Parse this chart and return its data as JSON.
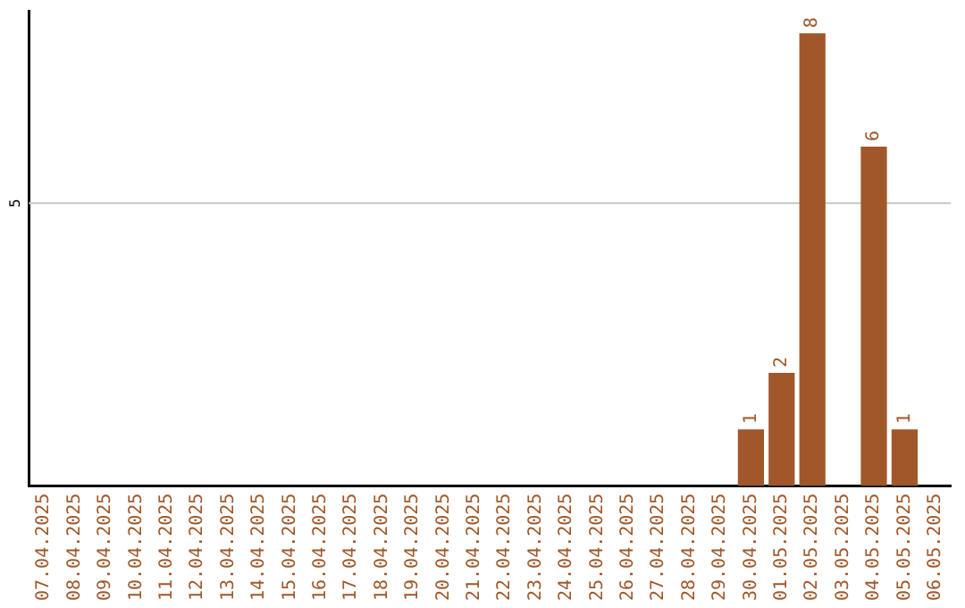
{
  "chart_data": {
    "type": "bar",
    "categories": [
      "07.04.2025",
      "08.04.2025",
      "09.04.2025",
      "10.04.2025",
      "11.04.2025",
      "12.04.2025",
      "13.04.2025",
      "14.04.2025",
      "15.04.2025",
      "16.04.2025",
      "17.04.2025",
      "18.04.2025",
      "19.04.2025",
      "20.04.2025",
      "21.04.2025",
      "22.04.2025",
      "23.04.2025",
      "24.04.2025",
      "25.04.2025",
      "26.04.2025",
      "27.04.2025",
      "28.04.2025",
      "29.04.2025",
      "30.04.2025",
      "01.05.2025",
      "02.05.2025",
      "03.05.2025",
      "04.05.2025",
      "05.05.2025",
      "06.05.2025"
    ],
    "values": [
      null,
      null,
      null,
      null,
      null,
      null,
      null,
      null,
      null,
      null,
      null,
      null,
      null,
      null,
      null,
      null,
      null,
      null,
      null,
      null,
      null,
      null,
      null,
      1,
      2,
      8,
      null,
      6,
      1,
      null
    ],
    "data_labels": true,
    "color": "#a0582a",
    "ylim": [
      0,
      8.4
    ],
    "ref_lines": [
      {
        "axis": "y",
        "value": 5,
        "label": "5",
        "color": "#c8c8c8"
      }
    ],
    "legend": false
  }
}
